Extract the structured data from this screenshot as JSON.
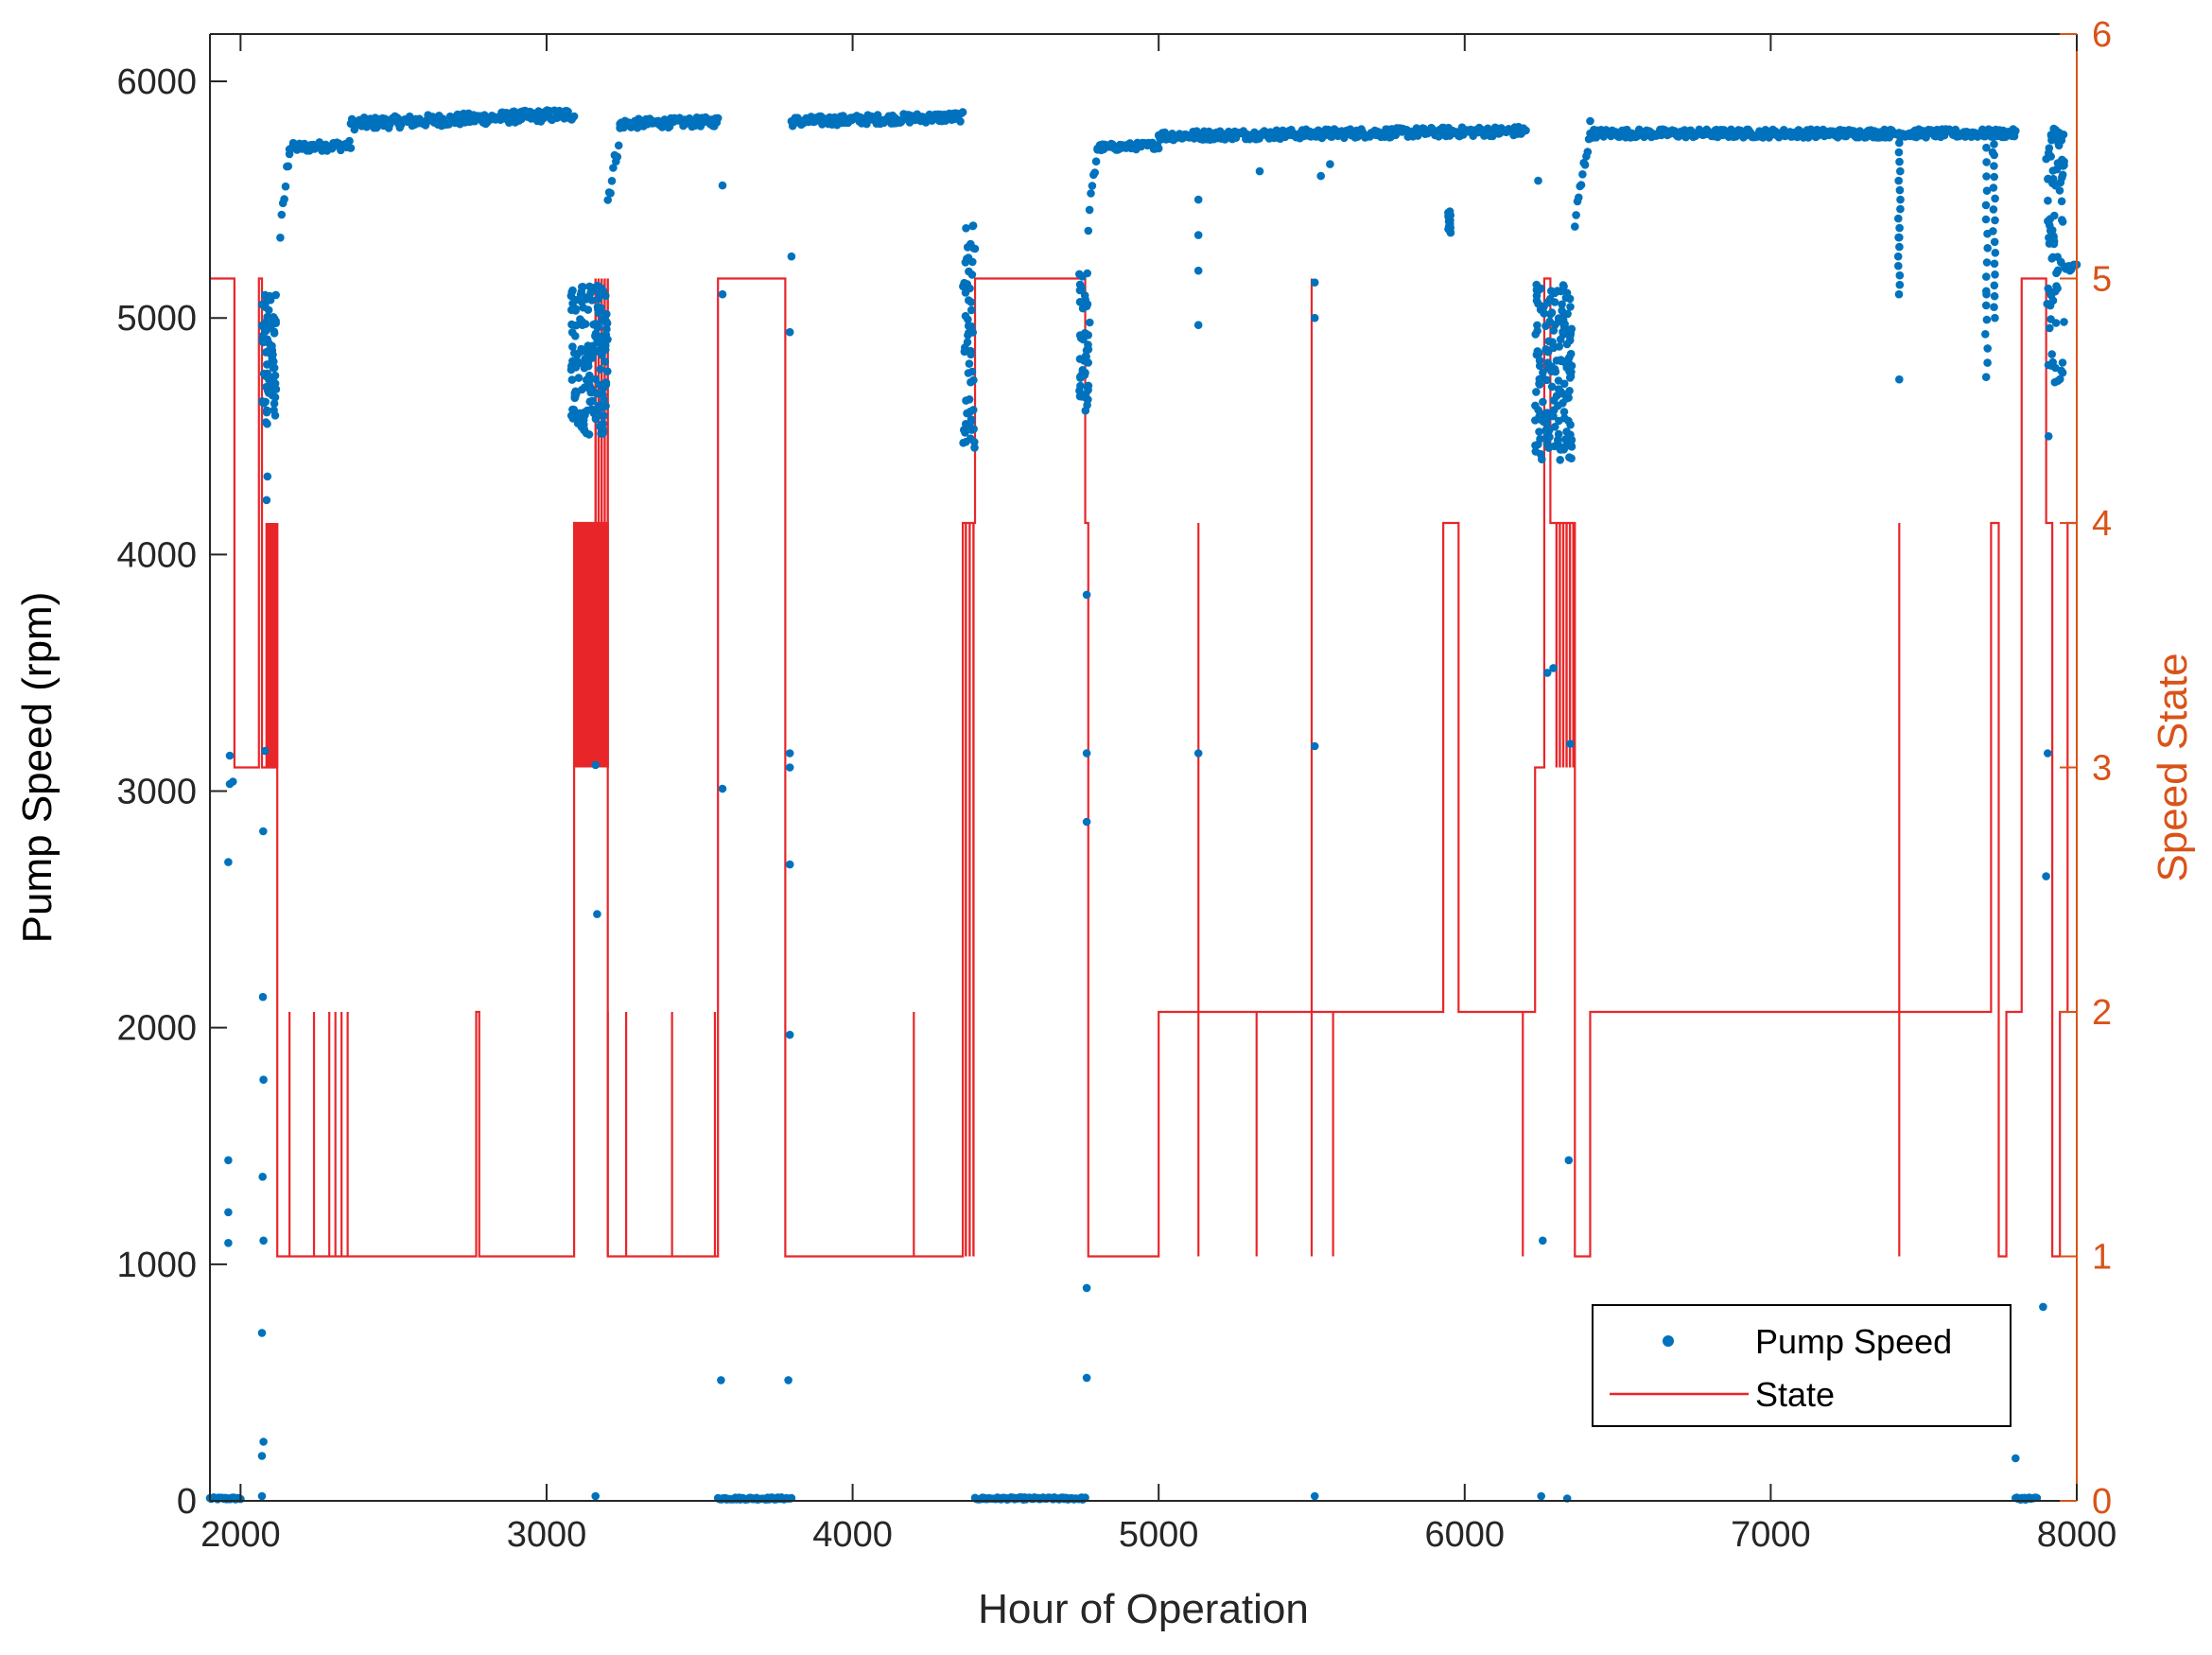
{
  "chart_data": {
    "type": "scatter+line",
    "title": "",
    "xlabel": "Hour of Operation",
    "ylabel_left": "Pump Speed (rpm)",
    "ylabel_right": "Speed State",
    "xlim": [
      1900,
      8000
    ],
    "ylim_left": [
      0,
      6200
    ],
    "ylim_right": [
      0,
      6
    ],
    "x_ticks": [
      "2000",
      "3000",
      "4000",
      "5000",
      "6000",
      "7000",
      "8000"
    ],
    "y_ticks_left": [
      "0",
      "1000",
      "2000",
      "3000",
      "4000",
      "5000",
      "6000"
    ],
    "y_ticks_right": [
      "0",
      "1",
      "2",
      "3",
      "4",
      "5",
      "6"
    ],
    "colors": {
      "pump": "#0072BD",
      "state": "#E8262A",
      "right_axis": "#D95319"
    },
    "legend": {
      "placement": "bottom-right",
      "entries": [
        "Pump Speed",
        "State"
      ]
    },
    "series": [
      {
        "name": "Pump Speed",
        "kind": "scatter",
        "segments": [
          {
            "x0": 1900,
            "x1": 2000,
            "start": 10,
            "end": 10,
            "jitter": 5
          },
          {
            "x0": 2130,
            "x1": 2160,
            "start": 5350,
            "end": 5720,
            "jitter": 40
          },
          {
            "x0": 2160,
            "x1": 2360,
            "start": 5720,
            "end": 5730,
            "jitter": 20
          },
          {
            "x0": 2360,
            "x1": 3090,
            "start": 5820,
            "end": 5860,
            "jitter": 25
          },
          {
            "x0": 3200,
            "x1": 3240,
            "start": 5500,
            "end": 5780,
            "jitter": 40
          },
          {
            "x0": 3240,
            "x1": 3560,
            "start": 5820,
            "end": 5830,
            "jitter": 20
          },
          {
            "x0": 3560,
            "x1": 3800,
            "start": 10,
            "end": 10,
            "jitter": 5
          },
          {
            "x0": 3800,
            "x1": 4360,
            "start": 5830,
            "end": 5850,
            "jitter": 20
          },
          {
            "x0": 4400,
            "x1": 4760,
            "start": 10,
            "end": 10,
            "jitter": 5
          },
          {
            "x0": 4770,
            "x1": 4800,
            "start": 5400,
            "end": 5720,
            "jitter": 40
          },
          {
            "x0": 4800,
            "x1": 5000,
            "start": 5720,
            "end": 5730,
            "jitter": 15
          },
          {
            "x0": 5000,
            "x1": 6200,
            "start": 5770,
            "end": 5790,
            "jitter": 20
          },
          {
            "x0": 6360,
            "x1": 6410,
            "start": 5400,
            "end": 5800,
            "jitter": 40
          },
          {
            "x0": 6410,
            "x1": 7800,
            "start": 5780,
            "end": 5780,
            "jitter": 18
          },
          {
            "x0": 7800,
            "x1": 7870,
            "start": 10,
            "end": 10,
            "jitter": 5
          },
          {
            "x0": 7960,
            "x1": 8000,
            "start": 5210,
            "end": 5220,
            "jitter": 15
          }
        ],
        "clusters": [
          {
            "x0": 2070,
            "x1": 2120,
            "ymin": 4550,
            "ymax": 5100
          },
          {
            "x0": 3080,
            "x1": 3200,
            "ymin": 4500,
            "ymax": 5150
          },
          {
            "x0": 4360,
            "x1": 4400,
            "ymin": 4450,
            "ymax": 5400
          },
          {
            "x0": 4740,
            "x1": 4775,
            "ymin": 4600,
            "ymax": 5200
          },
          {
            "x0": 6230,
            "x1": 6350,
            "ymin": 4400,
            "ymax": 5150
          },
          {
            "x0": 7900,
            "x1": 7960,
            "ymin": 4700,
            "ymax": 5800
          }
        ],
        "points": [
          [
            1960,
            1090
          ],
          [
            1960,
            1220
          ],
          [
            1960,
            1440
          ],
          [
            1960,
            2700
          ],
          [
            1965,
            3030
          ],
          [
            1975,
            3040
          ],
          [
            1965,
            3150
          ],
          [
            2070,
            20
          ],
          [
            2070,
            190
          ],
          [
            2075,
            250
          ],
          [
            2070,
            710
          ],
          [
            2075,
            1100
          ],
          [
            2072,
            1370
          ],
          [
            2075,
            1780
          ],
          [
            2073,
            2130
          ],
          [
            2074,
            2830
          ],
          [
            2080,
            3170
          ],
          [
            2085,
            4230
          ],
          [
            2088,
            4330
          ],
          [
            3160,
            20
          ],
          [
            3165,
            2480
          ],
          [
            3160,
            3110
          ],
          [
            3570,
            510
          ],
          [
            3575,
            3010
          ],
          [
            3575,
            5100
          ],
          [
            3575,
            5560
          ],
          [
            3790,
            510
          ],
          [
            3795,
            1970
          ],
          [
            3795,
            2690
          ],
          [
            3795,
            3100
          ],
          [
            3795,
            3160
          ],
          [
            3795,
            4940
          ],
          [
            3800,
            5260
          ],
          [
            4765,
            520
          ],
          [
            4765,
            900
          ],
          [
            4765,
            2870
          ],
          [
            4765,
            3160
          ],
          [
            4765,
            3830
          ],
          [
            5130,
            3160
          ],
          [
            5130,
            4970
          ],
          [
            5130,
            5200
          ],
          [
            5130,
            5350
          ],
          [
            5130,
            5500
          ],
          [
            5330,
            5620
          ],
          [
            5510,
            20
          ],
          [
            5510,
            3190
          ],
          [
            5510,
            5000
          ],
          [
            5510,
            5150
          ],
          [
            5530,
            5600
          ],
          [
            5560,
            5650
          ],
          [
            6240,
            5060
          ],
          [
            6240,
            5580
          ],
          [
            6245,
            4820
          ],
          [
            6250,
            20
          ],
          [
            6255,
            1100
          ],
          [
            6270,
            3500
          ],
          [
            6290,
            3520
          ],
          [
            6335,
            10
          ],
          [
            6340,
            1440
          ],
          [
            6345,
            3200
          ],
          [
            7420,
            4740
          ],
          [
            7420,
            5340
          ],
          [
            7705,
            5100
          ],
          [
            7725,
            5700
          ],
          [
            7800,
            180
          ],
          [
            7890,
            820
          ],
          [
            7900,
            2640
          ],
          [
            7905,
            3160
          ],
          [
            7908,
            4500
          ],
          [
            7925,
            5800
          ]
        ],
        "drops": [
          {
            "x": 7420,
            "from": 5780,
            "to": 5100
          },
          {
            "x": 7705,
            "from": 5780,
            "to": 4750
          },
          {
            "x": 7730,
            "from": 5780,
            "to": 5000
          },
          {
            "x": 5950,
            "from": 5450,
            "to": 5360
          }
        ]
      },
      {
        "name": "State",
        "kind": "step",
        "segments": [
          [
            1900,
            5
          ],
          [
            1980,
            3
          ],
          [
            2060,
            5
          ],
          [
            2070,
            3
          ],
          [
            2120,
            1
          ],
          [
            2770,
            2
          ],
          [
            2780,
            1
          ],
          [
            3090,
            4
          ],
          [
            3200,
            1
          ],
          [
            3560,
            5
          ],
          [
            3780,
            1
          ],
          [
            4360,
            4
          ],
          [
            4400,
            5
          ],
          [
            4760,
            4
          ],
          [
            4770,
            1
          ],
          [
            5000,
            2
          ],
          [
            5930,
            4
          ],
          [
            5980,
            2
          ],
          [
            6230,
            3
          ],
          [
            6260,
            5
          ],
          [
            6280,
            4
          ],
          [
            6360,
            1
          ],
          [
            6410,
            2
          ],
          [
            7720,
            4
          ],
          [
            7745,
            1
          ],
          [
            7770,
            2
          ],
          [
            7820,
            5
          ],
          [
            7900,
            4
          ],
          [
            7920,
            1
          ],
          [
            7945,
            2
          ],
          [
            7970,
            4
          ],
          [
            8000,
            4
          ]
        ],
        "spikes": [
          [
            2160,
            2
          ],
          [
            2240,
            2
          ],
          [
            2290,
            2
          ],
          [
            2310,
            2
          ],
          [
            2330,
            2
          ],
          [
            2350,
            2
          ],
          [
            3200,
            2
          ],
          [
            3260,
            2
          ],
          [
            3410,
            2
          ],
          [
            3550,
            2
          ],
          [
            4200,
            2
          ],
          [
            5130,
            1
          ],
          [
            5130,
            4
          ],
          [
            5320,
            1
          ],
          [
            5500,
            1
          ],
          [
            5500,
            5
          ],
          [
            5570,
            1
          ],
          [
            6190,
            1
          ],
          [
            7420,
            1
          ],
          [
            7420,
            4
          ]
        ],
        "bursts": [
          {
            "x0": 2085,
            "x1": 2120,
            "lo": 3,
            "hi": 4,
            "n": 9
          },
          {
            "x0": 3095,
            "x1": 3195,
            "lo": 3,
            "hi": 4,
            "n": 20
          },
          {
            "x0": 3160,
            "x1": 3200,
            "lo": 3,
            "hi": 5,
            "n": 5
          },
          {
            "x0": 4370,
            "x1": 4395,
            "lo": 1,
            "hi": 4,
            "n": 3
          },
          {
            "x0": 6300,
            "x1": 6355,
            "lo": 3,
            "hi": 4,
            "n": 6
          }
        ]
      }
    ]
  }
}
